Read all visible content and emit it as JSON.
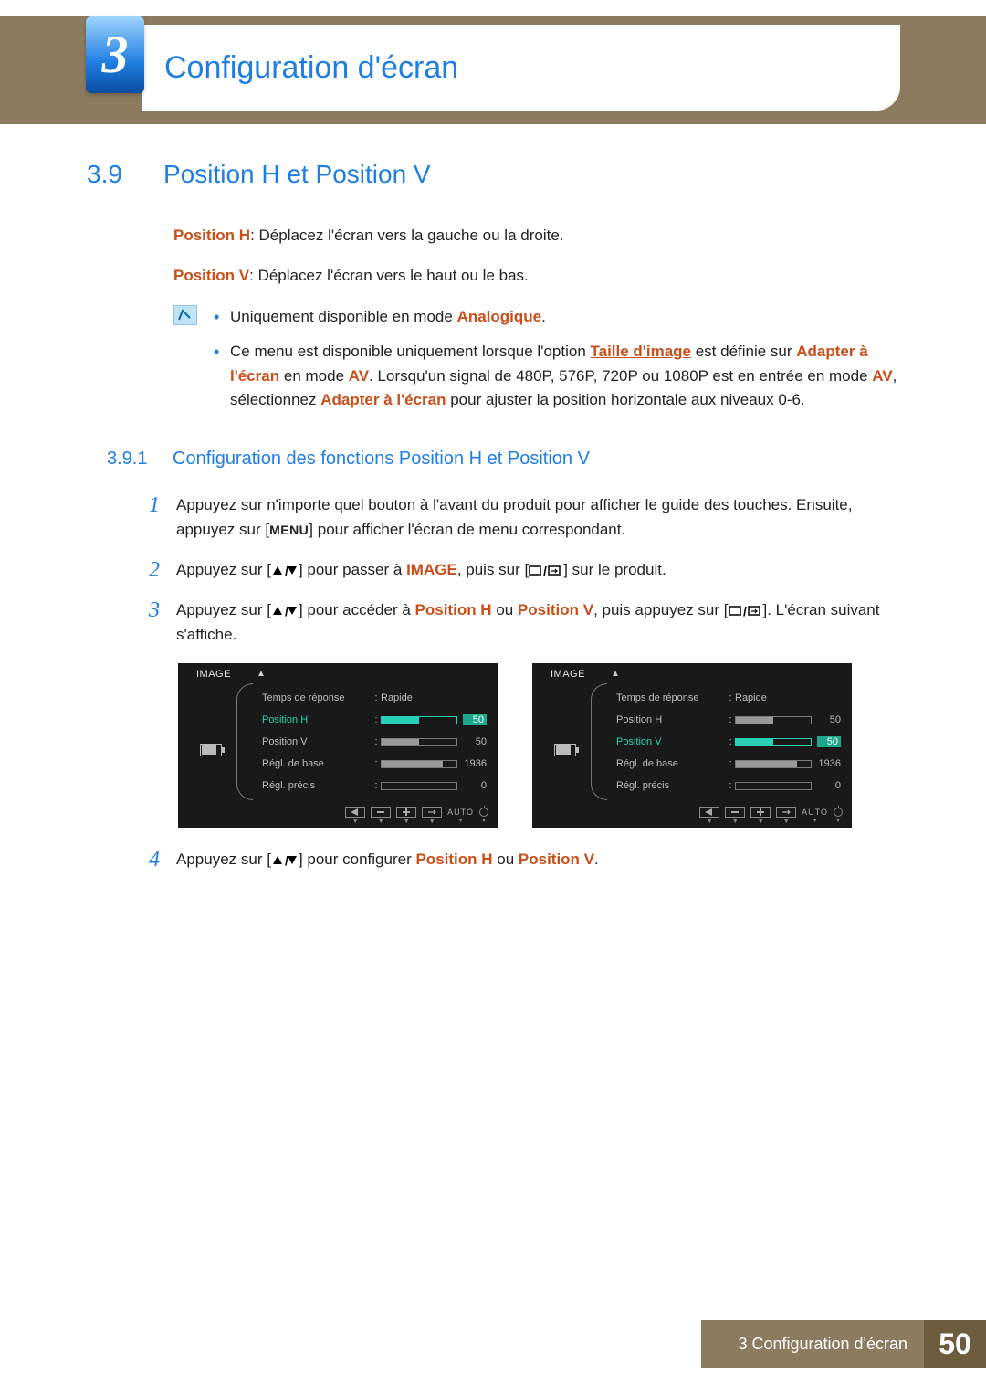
{
  "chapter": {
    "number": "3",
    "title": "Configuration d'écran"
  },
  "section": {
    "num": "3.9",
    "title": "Position H et Position V"
  },
  "intro": {
    "posH_label": "Position H",
    "posH_text": ": Déplacez l'écran vers la gauche ou la droite.",
    "posV_label": "Position V",
    "posV_text": ": Déplacez l'écran vers le haut ou le bas."
  },
  "notes": {
    "n1_a": "Uniquement disponible en mode ",
    "n1_b": "Analogique",
    "n1_c": ".",
    "n2_a": "Ce menu est disponible uniquement lorsque l'option ",
    "n2_link": "Taille d'image",
    "n2_b": " est définie sur ",
    "n2_c": "Adapter à l'écran",
    "n2_d": " en mode ",
    "n2_e": "AV",
    "n2_f": ". Lorsqu'un signal de 480P, 576P, 720P ou 1080P est en entrée en mode ",
    "n2_g": "AV",
    "n2_h": ", sélectionnez ",
    "n2_i": "Adapter à l'écran",
    "n2_j": " pour ajuster la position horizontale aux niveaux 0-6."
  },
  "subsection": {
    "num": "3.9.1",
    "title": "Configuration des fonctions Position H et Position V"
  },
  "steps": {
    "s1_a": "Appuyez sur n'importe quel bouton à l'avant du produit pour afficher le guide des touches. Ensuite, appuyez sur [",
    "s1_menu": "MENU",
    "s1_b": "] pour afficher l'écran de menu correspondant.",
    "s2_a": "Appuyez sur [",
    "s2_b": "] pour passer à ",
    "s2_c": "IMAGE",
    "s2_d": ", puis sur [",
    "s2_e": "] sur le produit.",
    "s3_a": "Appuyez sur [",
    "s3_b": "] pour accéder à ",
    "s3_c": "Position H",
    "s3_d": " ou ",
    "s3_e": "Position V",
    "s3_f": ", puis appuyez sur [",
    "s3_g": "]. L'écran suivant s'affiche.",
    "s4_a": "Appuyez sur [",
    "s4_b": "] pour configurer ",
    "s4_c": "Position H",
    "s4_d": " ou ",
    "s4_e": "Position V",
    "s4_f": "."
  },
  "osd": {
    "title": "IMAGE",
    "auto": "AUTO",
    "rows": [
      {
        "label": "Temps de réponse",
        "type": "text",
        "value": "Rapide"
      },
      {
        "label": "Position H",
        "type": "bar",
        "fill": 50,
        "value": "50"
      },
      {
        "label": "Position V",
        "type": "bar",
        "fill": 50,
        "value": "50"
      },
      {
        "label": "Régl. de base",
        "type": "bar",
        "fill": 82,
        "value": "1936"
      },
      {
        "label": "Régl. précis",
        "type": "bar",
        "fill": 0,
        "value": "0"
      }
    ],
    "left_highlight_index": 1,
    "right_highlight_index": 2,
    "colors": {
      "bg": "#19191a",
      "text": "#bdbdbd",
      "hl": "#29d0b3"
    }
  },
  "footer": {
    "label": "3 Configuration d'écran",
    "page": "50"
  }
}
